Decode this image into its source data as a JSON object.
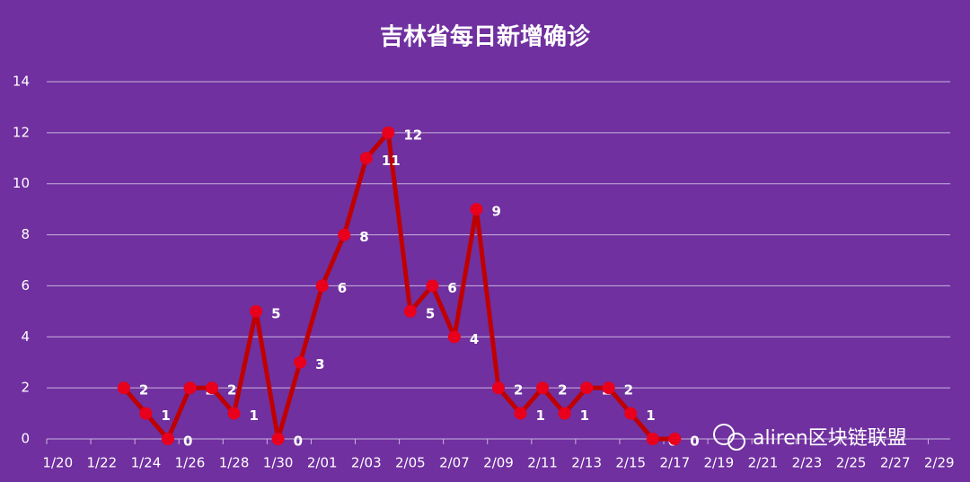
{
  "chart_data": {
    "type": "line",
    "title": "吉林省每日新增确诊",
    "categories": [
      "1/20",
      null,
      "1/22",
      null,
      "1/24",
      null,
      "1/26",
      null,
      "1/28",
      null,
      "1/30",
      null,
      "2/01",
      null,
      "2/03",
      null,
      "2/05",
      null,
      "2/07",
      null,
      "2/09",
      null,
      "2/11",
      null,
      "2/13",
      null,
      "2/15",
      null,
      "2/17",
      null,
      "2/19",
      null,
      "2/21",
      null,
      "2/23",
      null,
      "2/25",
      null,
      "2/27",
      null,
      "2/29"
    ],
    "values": [
      null,
      null,
      null,
      2,
      1,
      0,
      2,
      2,
      1,
      5,
      0,
      3,
      6,
      8,
      11,
      12,
      5,
      6,
      4,
      9,
      2,
      1,
      2,
      1,
      2,
      2,
      1,
      0,
      0,
      null,
      null,
      null,
      null,
      null,
      null,
      null,
      null,
      null,
      null,
      null,
      null
    ],
    "color": "#c00000",
    "marker_color": "#e8001c",
    "ylim": [
      0,
      14
    ],
    "yticks": [
      0,
      2,
      4,
      6,
      8,
      10,
      12,
      14
    ],
    "grid": true,
    "data_labels": true,
    "watermark": "aliren区块链联盟"
  }
}
